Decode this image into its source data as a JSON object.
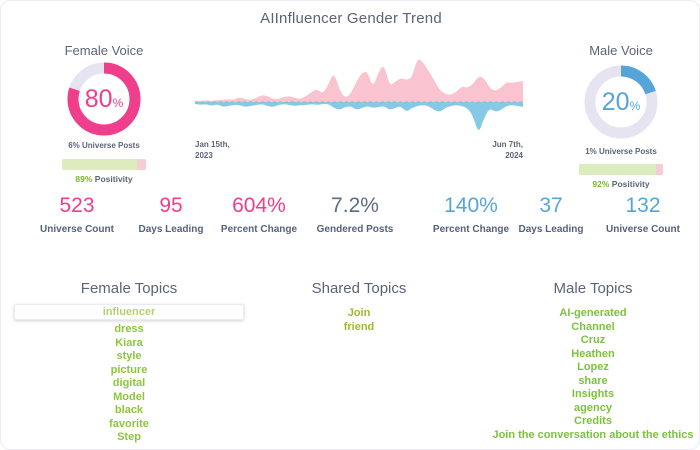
{
  "title": "AIInfluencer Gender Trend",
  "female": {
    "label": "Female Voice",
    "percent": 80,
    "percent_display": "80",
    "percent_unit": "%",
    "universe_posts": "6% Universe Posts",
    "positivity": 89,
    "positivity_display": "89%",
    "positivity_label": "Positivity",
    "accent": "#ee3e8c"
  },
  "male": {
    "label": "Male Voice",
    "percent": 20,
    "percent_display": "20",
    "percent_unit": "%",
    "universe_posts": "1% Universe Posts",
    "positivity": 92,
    "positivity_display": "92%",
    "positivity_label": "Positivity",
    "accent": "#55a5d8"
  },
  "colors": {
    "positive_green": "#76b82a",
    "slate": "#5b6477",
    "donut_track": "#e6e4f1",
    "bar_fill": "#dcecbe",
    "bar_rest": "#f5cdd4",
    "baseline": "#a9aec0"
  },
  "stats": [
    {
      "value": "523",
      "label": "Universe Count",
      "color": "#ee3e8c"
    },
    {
      "value": "95",
      "label": "Days Leading",
      "color": "#ee3e8c"
    },
    {
      "value": "604%",
      "label": "Percent Change",
      "color": "#ee3e8c"
    },
    {
      "value": "7.2%",
      "label": "Gendered Posts",
      "color": "#5b6b84"
    },
    {
      "value": "140%",
      "label": "Percent Change",
      "color": "#55a5d8"
    },
    {
      "value": "37",
      "label": "Days Leading",
      "color": "#55a5d8"
    },
    {
      "value": "132",
      "label": "Universe Count",
      "color": "#55a5d8"
    }
  ],
  "chart_data": {
    "type": "area",
    "title": "AIInfluencer Gender Trend",
    "baseline": "dashed",
    "units": "relative post volume (px, unlabeled axis)",
    "x_range": [
      "Jan 15th, 2023",
      "Jun 7th, 2024"
    ],
    "x_start": {
      "line1": "Jan 15th,",
      "line2": "2023"
    },
    "x_end": {
      "line1": "Jun 7th,",
      "line2": "2024"
    },
    "series": [
      {
        "name": "Female",
        "color": "#f9c4cf",
        "orientation": "above",
        "values": [
          1,
          1,
          2,
          1,
          2,
          2,
          3,
          2,
          5,
          3,
          2,
          4,
          7,
          6,
          3,
          3,
          5,
          6,
          4,
          3,
          6,
          10,
          13,
          8,
          18,
          30,
          12,
          4,
          8,
          20,
          29,
          31,
          14,
          30,
          38,
          16,
          20,
          24,
          22,
          24,
          44,
          40,
          31,
          22,
          12,
          8,
          7,
          10,
          16,
          14,
          18,
          26,
          24,
          14,
          11,
          14,
          20,
          19,
          20,
          21
        ]
      },
      {
        "name": "Male",
        "color": "#85c9e6",
        "orientation": "below",
        "values": [
          2,
          3,
          2,
          4,
          2,
          5,
          4,
          3,
          3,
          5,
          4,
          3,
          2,
          4,
          5,
          3,
          2,
          3,
          4,
          3,
          3,
          2,
          3,
          2,
          2,
          6,
          8,
          5,
          4,
          8,
          6,
          4,
          6,
          5,
          4,
          8,
          6,
          4,
          10,
          6,
          4,
          3,
          4,
          8,
          10,
          6,
          4,
          3,
          4,
          6,
          14,
          32,
          16,
          6,
          10,
          8,
          4,
          3,
          4,
          5
        ]
      }
    ]
  },
  "topics": {
    "female": {
      "title": "Female Topics",
      "color": "#8cc63e",
      "selected": "influencer",
      "selected_color": "#b6cf6e",
      "items": [
        "influencer",
        "dress",
        "Kiara",
        "style",
        "picture",
        "digital",
        "Model",
        "black",
        "favorite",
        "Step"
      ]
    },
    "shared": {
      "title": "Shared Topics",
      "color": "#9fb92f",
      "items": [
        "Join",
        "friend"
      ]
    },
    "male": {
      "title": "Male Topics",
      "color": "#7cc23f",
      "items": [
        "AI-generated",
        "Channel",
        "Cruz",
        "Heathen",
        "Lopez",
        "share",
        "Insights",
        "agency",
        "Credits",
        "Join the conversation about the ethics"
      ]
    }
  }
}
